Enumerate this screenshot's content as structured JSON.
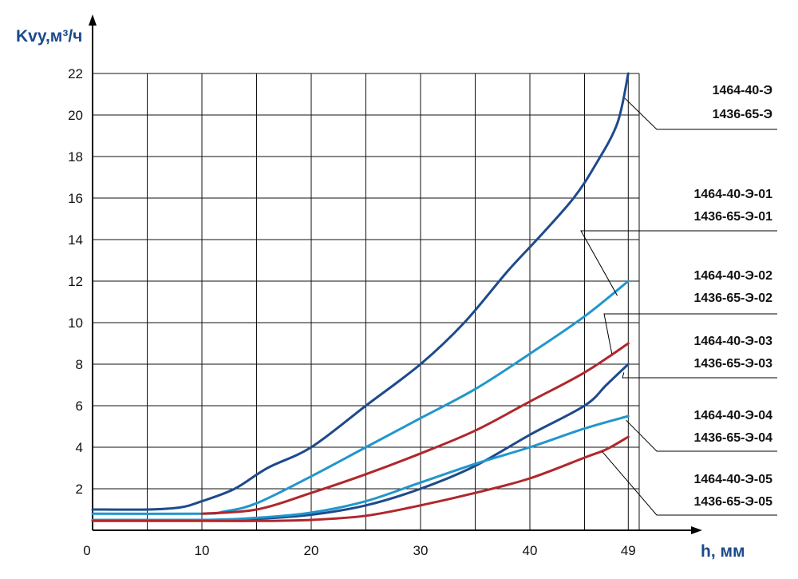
{
  "chart_data": {
    "type": "line",
    "y_title": "Kvy,м³/ч",
    "x_title": "h, мм",
    "origin_label": "0",
    "x_ticks": [
      "10",
      "20",
      "30",
      "40",
      "49"
    ],
    "y_ticks": [
      "2",
      "4",
      "6",
      "8",
      "10",
      "12",
      "14",
      "16",
      "18",
      "20",
      "22"
    ],
    "xlim": [
      0,
      50
    ],
    "ylim": [
      0,
      22
    ],
    "grid": true,
    "series": [
      {
        "labels": [
          "1464-40-Э",
          "1436-65-Э"
        ],
        "color": "#1e4a8c",
        "points": [
          [
            0,
            1.0
          ],
          [
            5,
            1.0
          ],
          [
            8,
            1.1
          ],
          [
            10,
            1.4
          ],
          [
            13,
            2.0
          ],
          [
            16,
            3.0
          ],
          [
            20,
            4.0
          ],
          [
            25,
            6.0
          ],
          [
            30,
            8.0
          ],
          [
            34,
            10.0
          ],
          [
            38,
            12.5
          ],
          [
            41,
            14.2
          ],
          [
            44,
            16.0
          ],
          [
            46,
            17.6
          ],
          [
            48,
            19.6
          ],
          [
            49,
            22.0
          ]
        ]
      },
      {
        "labels": [
          "1464-40-Э-01",
          "1436-65-Э-01"
        ],
        "color": "#2196cc",
        "points": [
          [
            0,
            0.8
          ],
          [
            10,
            0.8
          ],
          [
            12,
            0.9
          ],
          [
            15,
            1.3
          ],
          [
            20,
            2.6
          ],
          [
            25,
            4.0
          ],
          [
            30,
            5.4
          ],
          [
            35,
            6.8
          ],
          [
            40,
            8.5
          ],
          [
            45,
            10.3
          ],
          [
            49,
            12.0
          ]
        ]
      },
      {
        "labels": [
          "1464-40-Э-02",
          "1436-65-Э-02"
        ],
        "color": "#b0272c",
        "points": [
          [
            10,
            0.8
          ],
          [
            15,
            1.0
          ],
          [
            20,
            1.8
          ],
          [
            25,
            2.7
          ],
          [
            30,
            3.7
          ],
          [
            35,
            4.8
          ],
          [
            40,
            6.2
          ],
          [
            45,
            7.6
          ],
          [
            49,
            9.0
          ]
        ]
      },
      {
        "labels": [
          "1464-40-Э-03",
          "1436-65-Э-03"
        ],
        "color": "#1e4a8c",
        "points": [
          [
            0,
            0.5
          ],
          [
            10,
            0.5
          ],
          [
            15,
            0.55
          ],
          [
            20,
            0.75
          ],
          [
            25,
            1.2
          ],
          [
            30,
            2.0
          ],
          [
            35,
            3.1
          ],
          [
            40,
            4.6
          ],
          [
            45,
            6.0
          ],
          [
            47,
            7.0
          ],
          [
            49,
            8.0
          ]
        ]
      },
      {
        "labels": [
          "1464-40-Э-04",
          "1436-65-Э-04"
        ],
        "color": "#2196cc",
        "points": [
          [
            0,
            0.5
          ],
          [
            10,
            0.5
          ],
          [
            15,
            0.6
          ],
          [
            20,
            0.85
          ],
          [
            25,
            1.4
          ],
          [
            30,
            2.3
          ],
          [
            35,
            3.2
          ],
          [
            40,
            4.0
          ],
          [
            45,
            4.9
          ],
          [
            49,
            5.5
          ]
        ]
      },
      {
        "labels": [
          "1464-40-Э-05",
          "1436-65-Э-05"
        ],
        "color": "#b0272c",
        "points": [
          [
            0,
            0.45
          ],
          [
            10,
            0.45
          ],
          [
            15,
            0.45
          ],
          [
            20,
            0.5
          ],
          [
            25,
            0.7
          ],
          [
            30,
            1.2
          ],
          [
            35,
            1.8
          ],
          [
            40,
            2.5
          ],
          [
            45,
            3.5
          ],
          [
            47,
            3.9
          ],
          [
            49,
            4.5
          ]
        ]
      }
    ]
  }
}
